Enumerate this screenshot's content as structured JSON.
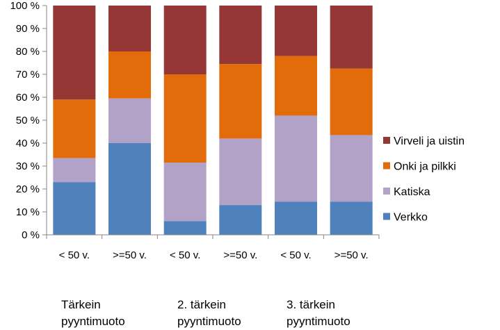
{
  "chart_data": {
    "type": "bar",
    "stacked": true,
    "percent_stacked": true,
    "categories": [
      "< 50 v.",
      ">=50 v.",
      "< 50 v.",
      ">=50 v.",
      "< 50 v.",
      ">=50 v."
    ],
    "groups": [
      {
        "line1": "Tärkein",
        "line2": "pyyntimuoto"
      },
      {
        "line1": "2. tärkein",
        "line2": "pyyntimuoto"
      },
      {
        "line1": "3. tärkein",
        "line2": "pyyntimuoto"
      }
    ],
    "series": [
      {
        "name": "Verkko",
        "color": "#4f81bd",
        "values": [
          23,
          40,
          6,
          13,
          14.5,
          14.5
        ]
      },
      {
        "name": "Katiska",
        "color": "#b2a2c7",
        "values": [
          10.5,
          19.5,
          25.5,
          29,
          37.5,
          29
        ]
      },
      {
        "name": "Onki ja pilkki",
        "color": "#e36c0a",
        "values": [
          25.5,
          20.5,
          38.5,
          32.5,
          26,
          29
        ]
      },
      {
        "name": "Virveli ja uistin",
        "color": "#953735",
        "values": [
          41,
          20,
          30,
          25.5,
          22,
          27.5
        ]
      }
    ],
    "ylim": [
      0,
      100
    ],
    "yticks": [
      "0 %",
      "10 %",
      "20 %",
      "30 %",
      "40 %",
      "50 %",
      "60 %",
      "70 %",
      "80 %",
      "90 %",
      "100 %"
    ],
    "grid": false,
    "legend_position": "right"
  }
}
